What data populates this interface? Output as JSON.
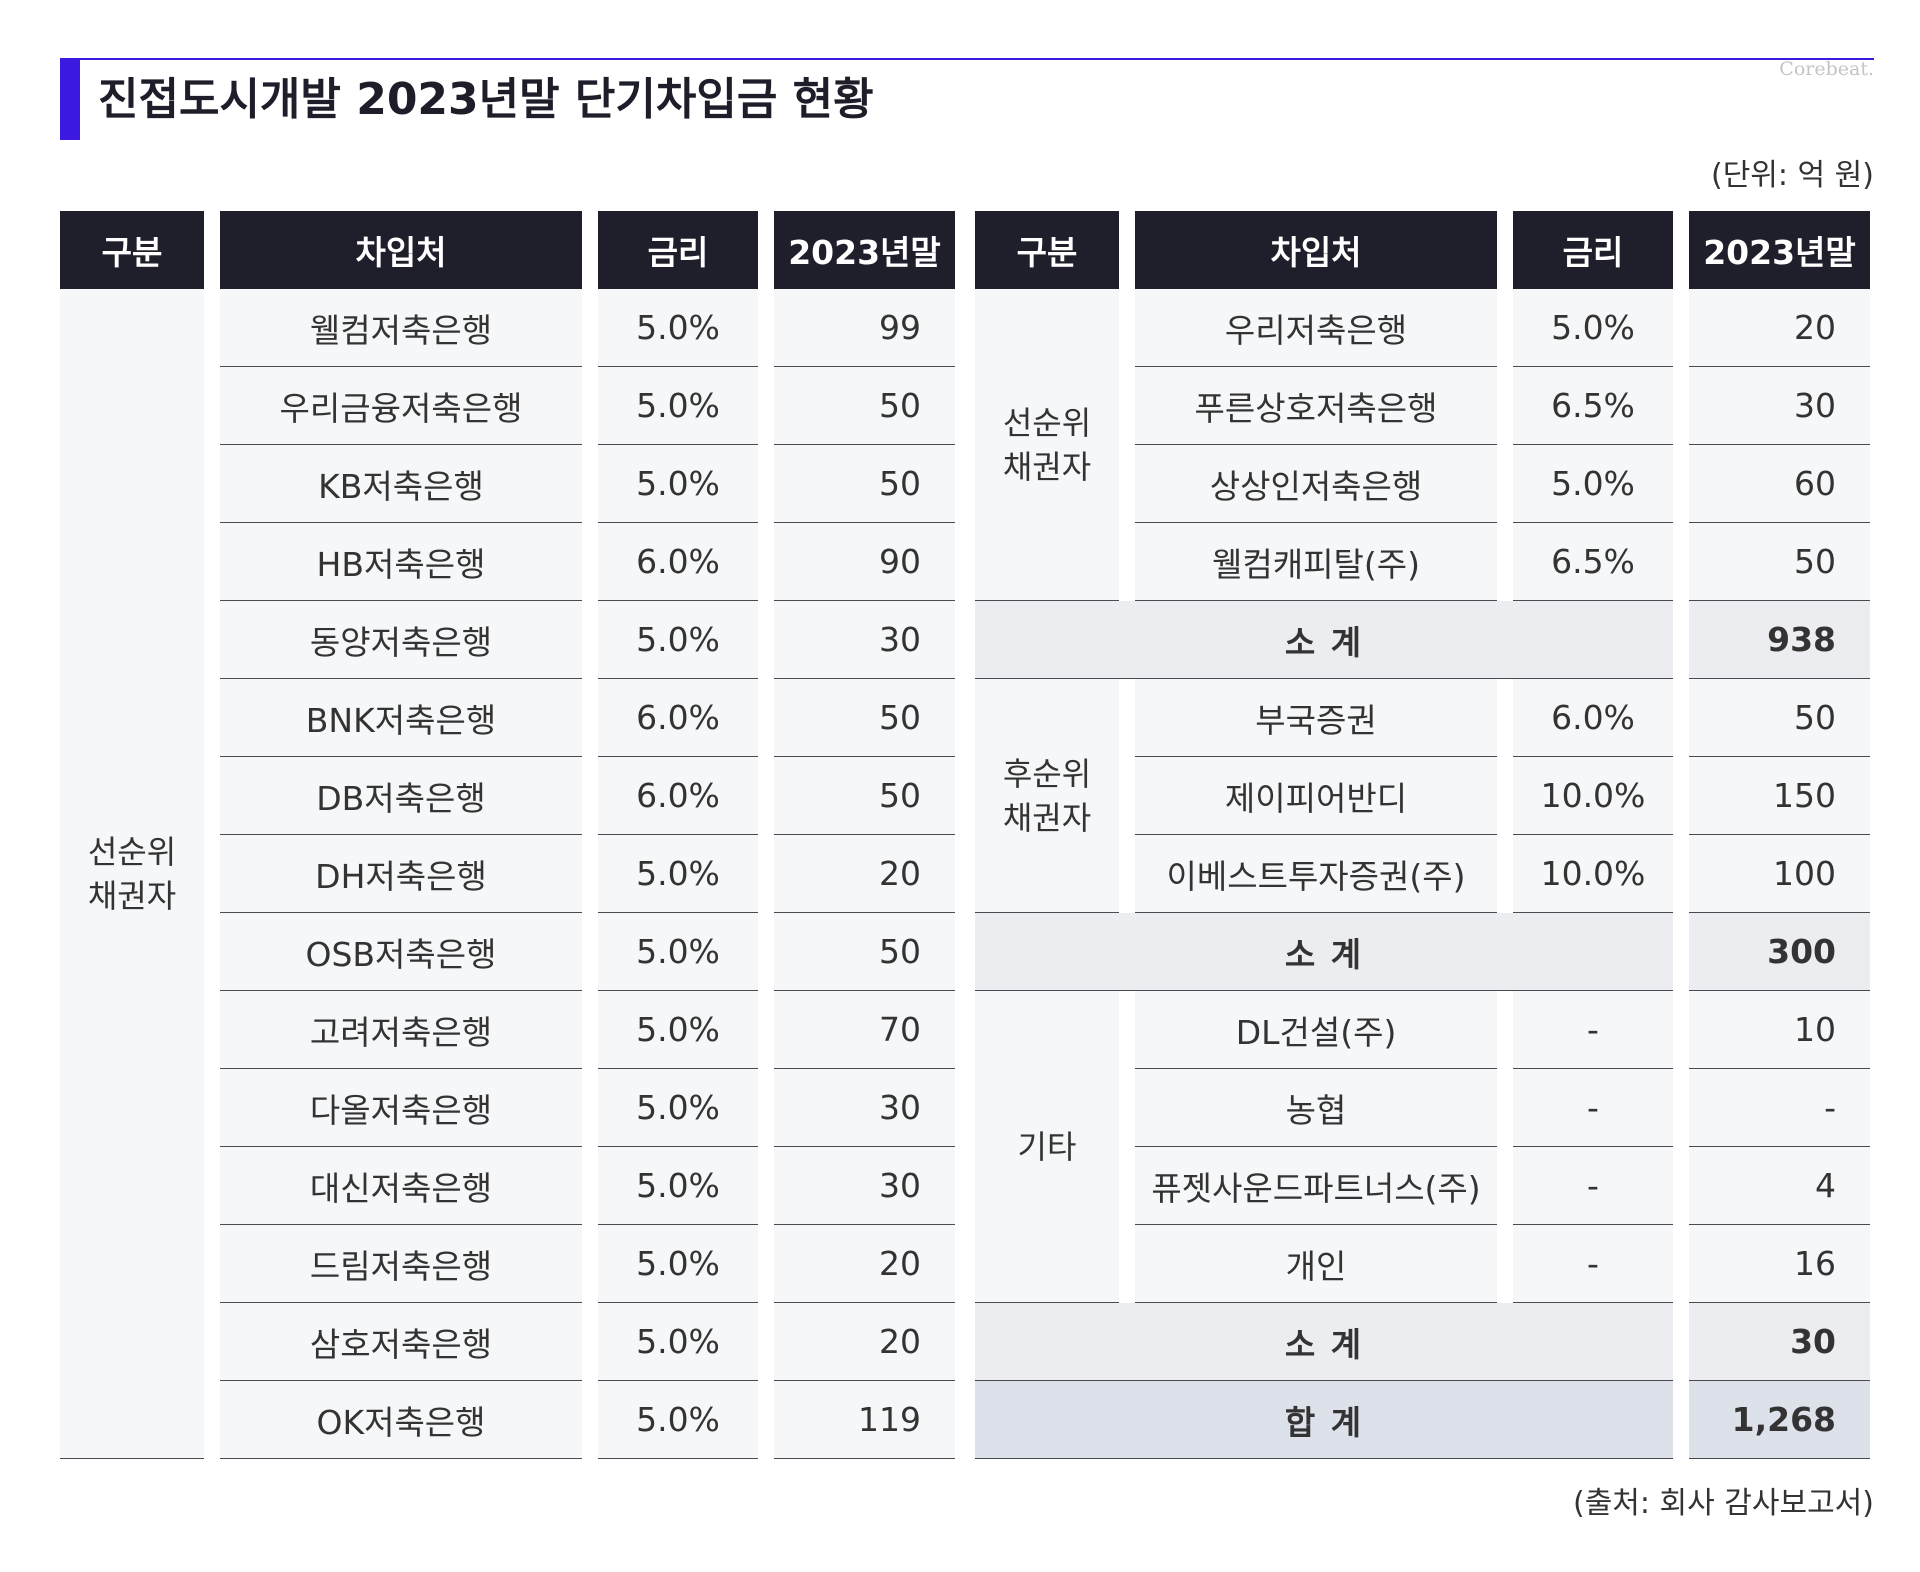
{
  "header": {
    "title": "진접도시개발 2023년말 단기차입금 현황",
    "brand": "Corebeat.",
    "unit": "(단위: 억 원)",
    "source": "(출처: 회사 감사보고서)"
  },
  "columns": [
    "구분",
    "차입처",
    "금리",
    "2023년말"
  ],
  "left_table": {
    "category": "선순위\n채권자",
    "rows": [
      {
        "lender": "웰컴저축은행",
        "rate": "5.0%",
        "amount": "99"
      },
      {
        "lender": "우리금융저축은행",
        "rate": "5.0%",
        "amount": "50"
      },
      {
        "lender": "KB저축은행",
        "rate": "5.0%",
        "amount": "50"
      },
      {
        "lender": "HB저축은행",
        "rate": "6.0%",
        "amount": "90"
      },
      {
        "lender": "동양저축은행",
        "rate": "5.0%",
        "amount": "30"
      },
      {
        "lender": "BNK저축은행",
        "rate": "6.0%",
        "amount": "50"
      },
      {
        "lender": "DB저축은행",
        "rate": "6.0%",
        "amount": "50"
      },
      {
        "lender": "DH저축은행",
        "rate": "5.0%",
        "amount": "20"
      },
      {
        "lender": "OSB저축은행",
        "rate": "5.0%",
        "amount": "50"
      },
      {
        "lender": "고려저축은행",
        "rate": "5.0%",
        "amount": "70"
      },
      {
        "lender": "다올저축은행",
        "rate": "5.0%",
        "amount": "30"
      },
      {
        "lender": "대신저축은행",
        "rate": "5.0%",
        "amount": "30"
      },
      {
        "lender": "드림저축은행",
        "rate": "5.0%",
        "amount": "20"
      },
      {
        "lender": "삼호저축은행",
        "rate": "5.0%",
        "amount": "20"
      },
      {
        "lender": "OK저축은행",
        "rate": "5.0%",
        "amount": "119"
      }
    ]
  },
  "right_table": {
    "groups": [
      {
        "category": "선순위\n채권자",
        "rows": [
          {
            "lender": "우리저축은행",
            "rate": "5.0%",
            "amount": "20"
          },
          {
            "lender": "푸른상호저축은행",
            "rate": "6.5%",
            "amount": "30"
          },
          {
            "lender": "상상인저축은행",
            "rate": "5.0%",
            "amount": "60"
          },
          {
            "lender": "웰컴캐피탈(주)",
            "rate": "6.5%",
            "amount": "50"
          }
        ],
        "subtotal_label": "소 계",
        "subtotal": "938"
      },
      {
        "category": "후순위\n채권자",
        "rows": [
          {
            "lender": "부국증권",
            "rate": "6.0%",
            "amount": "50"
          },
          {
            "lender": "제이피어반디",
            "rate": "10.0%",
            "amount": "150"
          },
          {
            "lender": "이베스트투자증권(주)",
            "rate": "10.0%",
            "amount": "100"
          }
        ],
        "subtotal_label": "소 계",
        "subtotal": "300"
      },
      {
        "category": "기타",
        "rows": [
          {
            "lender": "DL건설(주)",
            "rate": "-",
            "amount": "10"
          },
          {
            "lender": "농협",
            "rate": "-",
            "amount": "-"
          },
          {
            "lender": "퓨젯사운드파트너스(주)",
            "rate": "-",
            "amount": "4"
          },
          {
            "lender": "개인",
            "rate": "-",
            "amount": "16"
          }
        ],
        "subtotal_label": "소 계",
        "subtotal": "30"
      }
    ],
    "total_label": "합 계",
    "total": "1,268"
  }
}
